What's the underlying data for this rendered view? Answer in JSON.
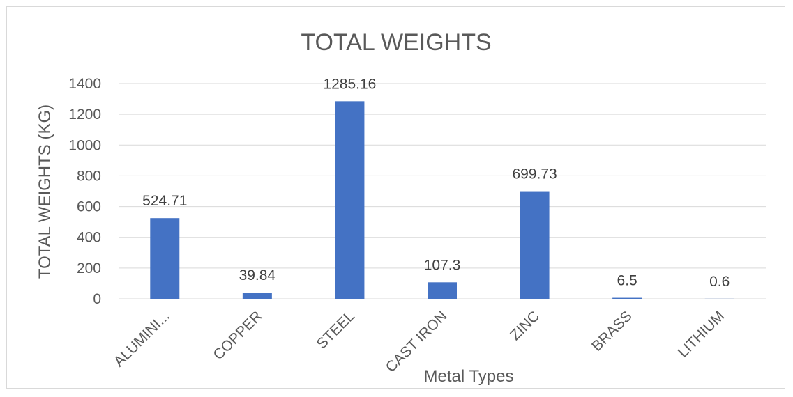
{
  "chart_data": {
    "type": "bar",
    "title": "TOTAL WEIGHTS",
    "xlabel": "Metal Types",
    "ylabel": "TOTAL WEIGHTS (KG)",
    "categories": [
      "ALUMINI...",
      "COPPER",
      "STEEL",
      "CAST IRON",
      "ZINC",
      "BRASS",
      "LITHIUM"
    ],
    "values": [
      524.71,
      39.84,
      1285.16,
      107.3,
      699.73,
      6.5,
      0.6
    ],
    "value_labels": [
      "524.71",
      "39.84",
      "1285.16",
      "107.3",
      "699.73",
      "6.5",
      "0.6"
    ],
    "ylim": [
      0,
      1400
    ],
    "yticks": [
      "0",
      "200",
      "400",
      "600",
      "800",
      "1000",
      "1200",
      "1400"
    ],
    "ytick_values": [
      0,
      200,
      400,
      600,
      800,
      1000,
      1200,
      1400
    ],
    "grid": true,
    "legend": "none",
    "bar_color": "#4472c4",
    "grid_color": "#d9d9d9"
  }
}
